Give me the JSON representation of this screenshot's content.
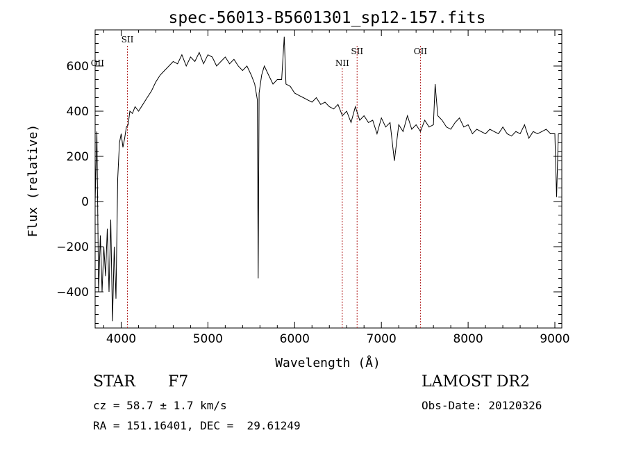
{
  "chart_data": {
    "type": "line",
    "title": "spec-56013-B5601301_sp12-157.fits",
    "xlabel": "Wavelength (Å)",
    "ylabel": "Flux (relative)",
    "xlim": [
      3700,
      9080
    ],
    "ylim": [
      -560,
      760
    ],
    "xticks": [
      4000,
      5000,
      6000,
      7000,
      8000,
      9000
    ],
    "yticks": [
      -400,
      -200,
      0,
      200,
      400,
      600
    ],
    "grid": false,
    "series": [
      {
        "x": [
          3700,
          3720,
          3740,
          3760,
          3780,
          3800,
          3820,
          3840,
          3860,
          3880,
          3900,
          3920,
          3940,
          3960,
          3980,
          4000,
          4020,
          4040,
          4060,
          4080,
          4100,
          4130,
          4160,
          4200,
          4250,
          4300,
          4350,
          4400,
          4450,
          4500,
          4550,
          4600,
          4650,
          4700,
          4750,
          4800,
          4850,
          4900,
          4950,
          5000,
          5050,
          5100,
          5150,
          5200,
          5250,
          5300,
          5350,
          5400,
          5450,
          5500,
          5540,
          5570,
          5580,
          5590,
          5620,
          5650,
          5700,
          5750,
          5800,
          5850,
          5880,
          5900,
          5950,
          6000,
          6050,
          6100,
          6150,
          6200,
          6250,
          6300,
          6350,
          6400,
          6450,
          6500,
          6550,
          6600,
          6650,
          6700,
          6750,
          6800,
          6850,
          6900,
          6950,
          7000,
          7050,
          7100,
          7150,
          7200,
          7250,
          7300,
          7350,
          7400,
          7450,
          7500,
          7550,
          7600,
          7620,
          7650,
          7700,
          7750,
          7800,
          7850,
          7900,
          7950,
          8000,
          8050,
          8100,
          8150,
          8200,
          8250,
          8300,
          8350,
          8400,
          8450,
          8500,
          8550,
          8600,
          8650,
          8700,
          8750,
          8800,
          8850,
          8900,
          8950,
          9000,
          9020,
          9040
        ],
        "y": [
          0,
          310,
          -400,
          -150,
          -400,
          -200,
          -330,
          -120,
          -400,
          -80,
          -530,
          -200,
          -430,
          100,
          260,
          300,
          240,
          280,
          330,
          340,
          400,
          390,
          420,
          400,
          430,
          460,
          490,
          530,
          560,
          580,
          600,
          620,
          610,
          650,
          600,
          640,
          620,
          660,
          610,
          650,
          640,
          600,
          620,
          640,
          610,
          630,
          600,
          580,
          600,
          560,
          520,
          450,
          -340,
          480,
          560,
          600,
          560,
          520,
          540,
          540,
          730,
          520,
          510,
          480,
          470,
          460,
          450,
          440,
          460,
          430,
          440,
          420,
          410,
          430,
          380,
          400,
          350,
          420,
          360,
          380,
          350,
          360,
          300,
          370,
          330,
          350,
          180,
          340,
          310,
          380,
          320,
          340,
          310,
          360,
          330,
          340,
          520,
          380,
          360,
          330,
          320,
          350,
          370,
          330,
          340,
          300,
          320,
          310,
          300,
          320,
          310,
          300,
          330,
          300,
          290,
          310,
          300,
          340,
          280,
          310,
          300,
          310,
          320,
          300,
          300,
          20,
          300
        ]
      }
    ],
    "lines": [
      {
        "label": "OII",
        "x": 3727,
        "show_marker": false
      },
      {
        "label": "SII",
        "x": 4072,
        "show_marker": true
      },
      {
        "label": "NII",
        "x": 6549,
        "show_marker": true
      },
      {
        "label": "SII",
        "x": 6720,
        "show_marker": true
      },
      {
        "label": "OII",
        "x": 7450,
        "show_marker": true
      }
    ]
  },
  "info": {
    "class": "STAR",
    "subclass": "F7",
    "cz": "cz = 58.7 ± 1.7 km/s",
    "radec": "RA = 151.16401, DEC =  29.61249",
    "survey": "LAMOST DR2",
    "obsdate": "Obs-Date: 20120326"
  }
}
